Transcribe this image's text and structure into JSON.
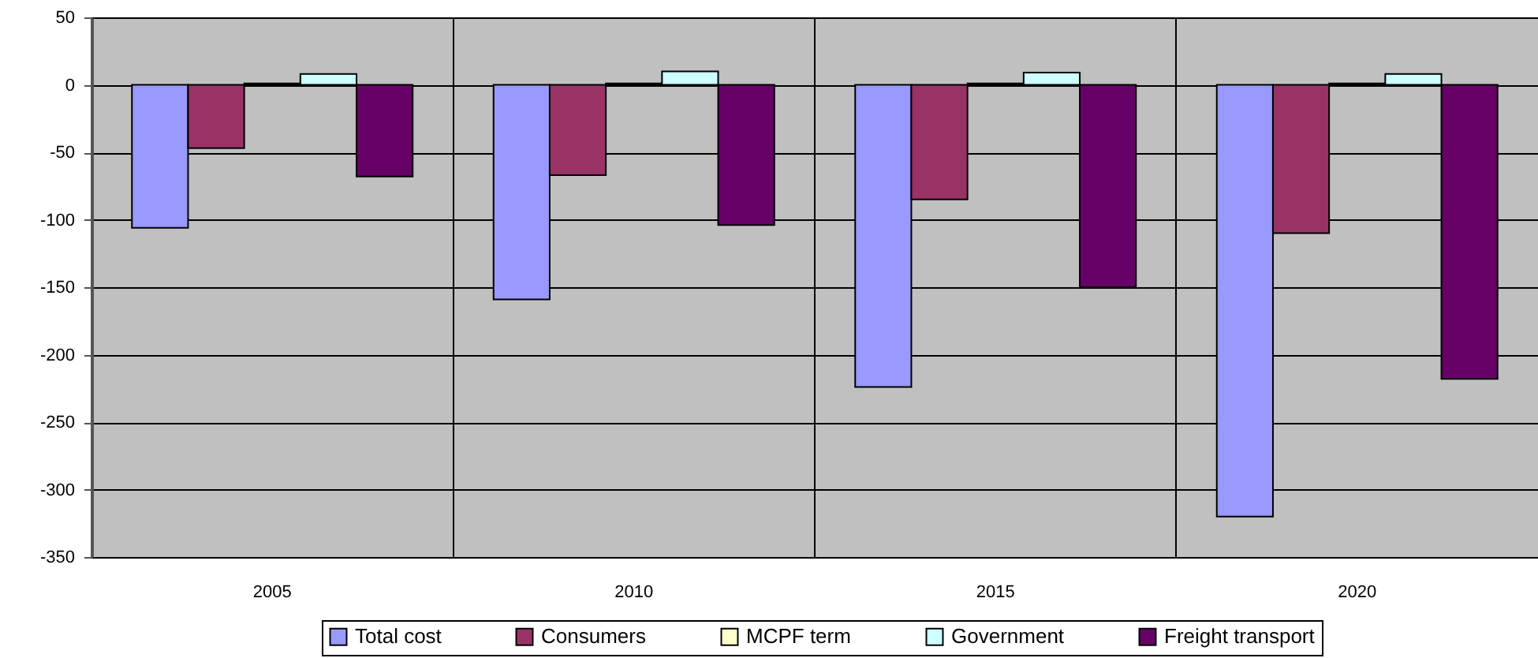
{
  "chart_data": {
    "type": "bar",
    "categories": [
      "2005",
      "2010",
      "2015",
      "2020"
    ],
    "series": [
      {
        "name": "Total cost",
        "color": "#9999ff",
        "values": [
          -106,
          -159,
          -224,
          -320
        ]
      },
      {
        "name": "Consumers",
        "color": "#993366",
        "values": [
          -47,
          -67,
          -85,
          -110
        ]
      },
      {
        "name": "MCPF term",
        "color": "#ffffcc",
        "values": [
          1,
          1,
          1,
          1
        ]
      },
      {
        "name": "Government",
        "color": "#ccffff",
        "values": [
          8,
          10,
          9,
          8
        ]
      },
      {
        "name": "Freight transport",
        "color": "#660066",
        "values": [
          -68,
          -104,
          -150,
          -218
        ]
      }
    ],
    "ylim": [
      -350,
      50
    ],
    "yticks": [
      -350,
      -300,
      -250,
      -200,
      -150,
      -100,
      -50,
      0,
      50
    ],
    "grid": true,
    "legend": "bottom"
  }
}
